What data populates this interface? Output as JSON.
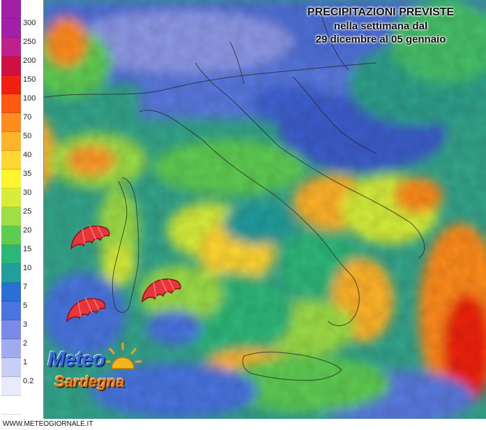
{
  "title": {
    "line1": "PRECIPITAZIONI PREVISTE",
    "line2": "nella settimana dal",
    "line3": "29 dicembre al 05 gennaio"
  },
  "legend": [
    {
      "label": "300",
      "color": "#a020a8"
    },
    {
      "label": "250",
      "color": "#c0208c"
    },
    {
      "label": "200",
      "color": "#d01040"
    },
    {
      "label": "150",
      "color": "#f02010"
    },
    {
      "label": "100",
      "color": "#ff5a14"
    },
    {
      "label": "70",
      "color": "#ff8c1e"
    },
    {
      "label": "50",
      "color": "#ffb42a"
    },
    {
      "label": "40",
      "color": "#ffd732"
    },
    {
      "label": "35",
      "color": "#fff52d"
    },
    {
      "label": "30",
      "color": "#d6ee3a"
    },
    {
      "label": "25",
      "color": "#9ede46"
    },
    {
      "label": "20",
      "color": "#5ccd50"
    },
    {
      "label": "15",
      "color": "#2db87a"
    },
    {
      "label": "10",
      "color": "#229e9e"
    },
    {
      "label": "7",
      "color": "#2a6fd6"
    },
    {
      "label": "5",
      "color": "#4a74e0"
    },
    {
      "label": "3",
      "color": "#7a8ae6"
    },
    {
      "label": "2",
      "color": "#a2aaf0"
    },
    {
      "label": "1",
      "color": "#c8cef6"
    },
    {
      "label": "0.2",
      "color": "#e8ebfb"
    },
    {
      "label": "",
      "color": "#ffffff"
    }
  ],
  "logo": {
    "line1": "Meteo",
    "line2": "Sardegna"
  },
  "footer": {
    "url": "WWW.METEOGIORNALE.IT"
  },
  "icons": [
    "umbrella-icon",
    "sun-icon"
  ]
}
